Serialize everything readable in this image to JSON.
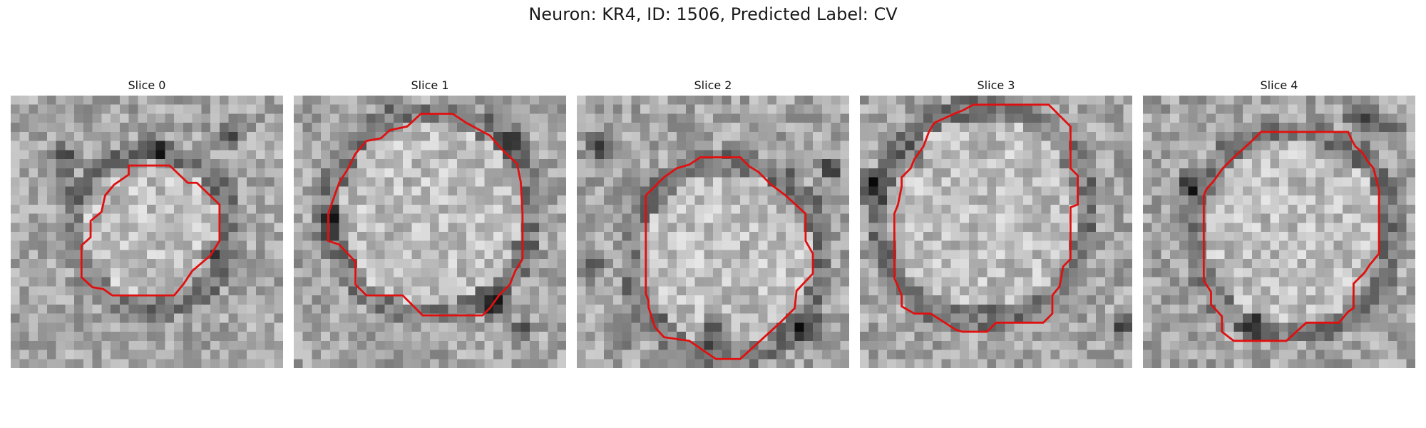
{
  "figure": {
    "title": "Neuron: KR4, ID: 1506, Predicted Label: CV"
  },
  "panels": [
    {
      "title": "Slice 0"
    },
    {
      "title": "Slice 1"
    },
    {
      "title": "Slice 2"
    },
    {
      "title": "Slice 3"
    },
    {
      "title": "Slice 4"
    }
  ],
  "colors": {
    "contour": "#e01010",
    "background": "#ffffff"
  }
}
